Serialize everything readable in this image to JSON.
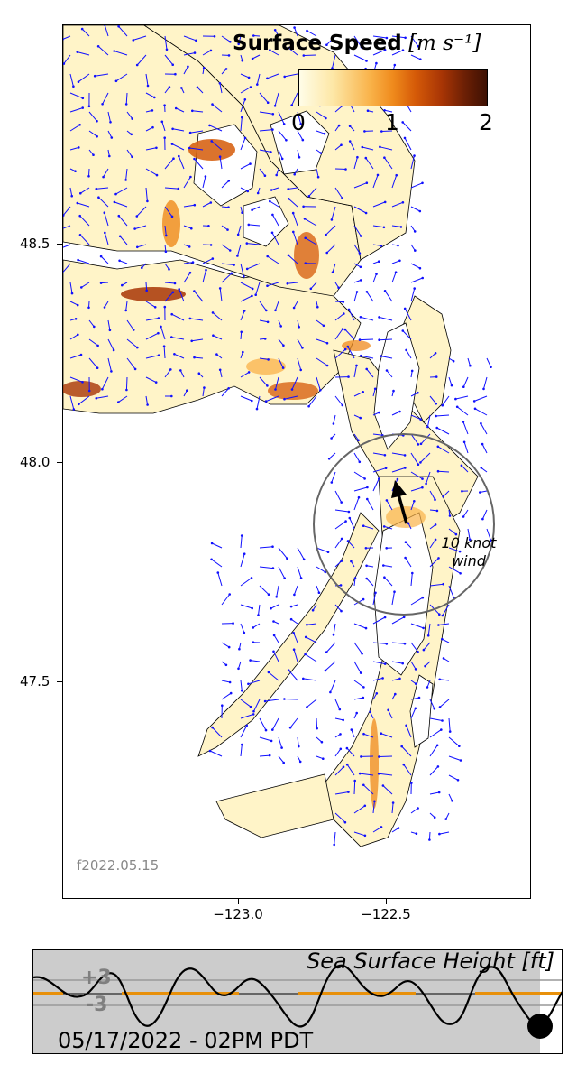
{
  "colorbar": {
    "title_bold": "Surface Speed",
    "title_units": "[m s⁻¹]",
    "ticks": [
      "0",
      "1",
      "2"
    ],
    "range": [
      0,
      2
    ],
    "colormap": [
      "#fffde8",
      "#fde7a6",
      "#f9b249",
      "#ef8a1c",
      "#d55a08",
      "#a83505",
      "#6d2005",
      "#3d1003"
    ]
  },
  "axes": {
    "y_ticks": [
      "48.5",
      "48.0",
      "47.5"
    ],
    "x_ticks": [
      "−123.0",
      "−122.5"
    ],
    "lon_range": [
      -123.6,
      -122.0
    ],
    "lat_range": [
      47.0,
      48.95
    ]
  },
  "wind": {
    "label_line1": "10 knot",
    "label_line2": "wind"
  },
  "file_label": "f2022.05.15",
  "ssh": {
    "title": "Sea Surface Height [ft]",
    "plus_label": "+3",
    "minus_label": "-3",
    "datetime": "05/17/2022 - 02PM PDT"
  },
  "colors": {
    "vector": "#1010ff",
    "coast": "#000000",
    "water": "#fff4c8",
    "ssh_background": "#cccccc",
    "ssh_daylight": "#e8900a"
  }
}
